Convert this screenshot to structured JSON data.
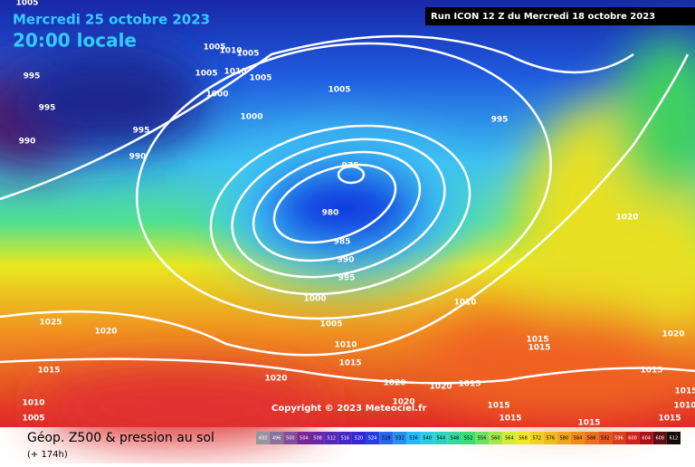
{
  "header": {
    "date": "Mercredi 25 octobre 2023",
    "time": "20:00 locale",
    "run": "Run ICON 12 Z du Mercredi 18 octobre 2023"
  },
  "pressure_labels": [
    1005,
    995,
    995,
    990,
    995,
    990,
    1005,
    1010,
    1005,
    1005,
    1010,
    1005,
    1000,
    1005,
    1000,
    995,
    975,
    980,
    985,
    990,
    995,
    1000,
    1005,
    1010,
    1015,
    1020,
    1010,
    1015,
    1015,
    1020,
    1015,
    1025,
    1020,
    1015,
    1020,
    1020,
    1020,
    1015,
    1020,
    1015,
    1015,
    1015,
    1010,
    1005,
    1015,
    1015,
    1010
  ],
  "copyright": "Copyright © 2023 Meteociel.fr",
  "legend": {
    "title": "Géop. Z500 & pression au sol",
    "lead_time": "(+ 174h)",
    "scale": [
      492,
      496,
      500,
      504,
      508,
      512,
      516,
      520,
      524,
      528,
      532,
      536,
      540,
      544,
      548,
      552,
      556,
      560,
      564,
      568,
      572,
      576,
      580,
      584,
      588,
      592,
      596,
      600,
      604,
      608,
      612
    ]
  }
}
